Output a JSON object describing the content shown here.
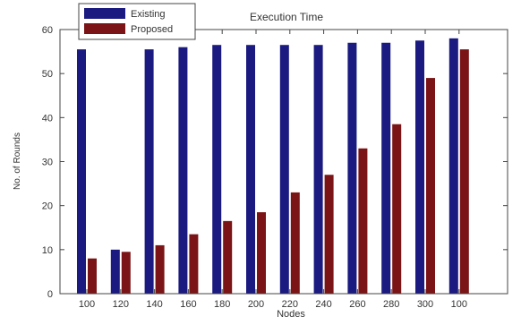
{
  "chart_data": {
    "type": "bar",
    "title": "Execution Time",
    "xlabel": "Nodes",
    "ylabel": "No. of Rounds",
    "ylim": [
      0,
      60
    ],
    "yticks": [
      0,
      10,
      20,
      30,
      40,
      50,
      60
    ],
    "grid": false,
    "legend_position": "top-left",
    "categories": [
      "100",
      "120",
      "140",
      "160",
      "180",
      "200",
      "220",
      "240",
      "260",
      "280",
      "300",
      "100"
    ],
    "series": [
      {
        "name": "Existing",
        "color": "#1a1a80",
        "values": [
          55.5,
          10,
          55.5,
          56,
          56.5,
          56.5,
          56.5,
          56.5,
          57,
          57,
          57.5,
          58
        ]
      },
      {
        "name": "Proposed",
        "color": "#7a1416",
        "values": [
          8,
          9.5,
          11,
          13.5,
          16.5,
          18.5,
          23,
          27,
          33,
          38.5,
          49,
          55.5
        ]
      }
    ]
  }
}
